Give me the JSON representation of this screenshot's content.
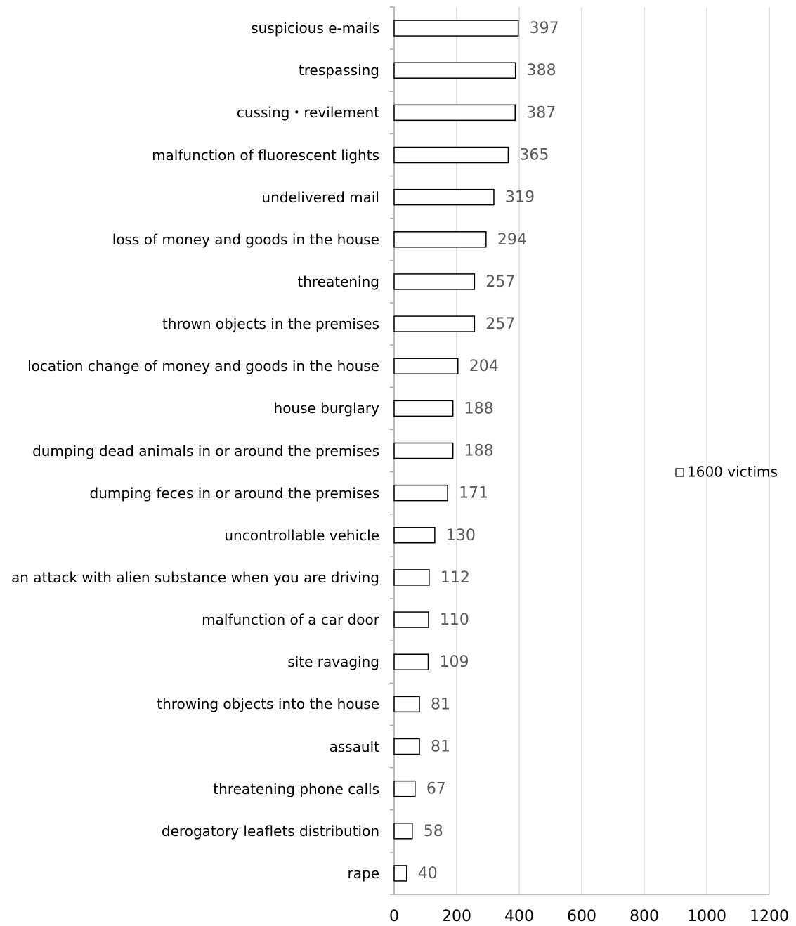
{
  "chart_data": {
    "type": "bar",
    "orientation": "horizontal",
    "categories": [
      "suspicious e-mails",
      "trespassing",
      "cussing・revilement",
      "malfunction of fluorescent lights",
      "undelivered mail",
      "loss of money and goods in the house",
      "threatening",
      "thrown objects in the premises",
      "location change of money and goods in the house",
      "house burglary",
      "dumping dead animals in or around the premises",
      "dumping feces in or around the premises",
      "uncontrollable vehicle",
      "an attack with alien substance when you are driving",
      "malfunction of a car door",
      "site ravaging",
      "throwing objects into the house",
      "assault",
      "threatening phone calls",
      "derogatory leaflets distribution",
      "rape"
    ],
    "series": [
      {
        "name": "1600 victims",
        "color": "#ffffff",
        "values": [
          397,
          388,
          387,
          365,
          319,
          294,
          257,
          257,
          204,
          188,
          188,
          171,
          130,
          112,
          110,
          109,
          81,
          81,
          67,
          58,
          40
        ]
      }
    ],
    "xlim": [
      0,
      1200
    ],
    "xticks": [
      0,
      200,
      400,
      600,
      800,
      1000,
      1200
    ],
    "grid": true,
    "legend": "right"
  }
}
